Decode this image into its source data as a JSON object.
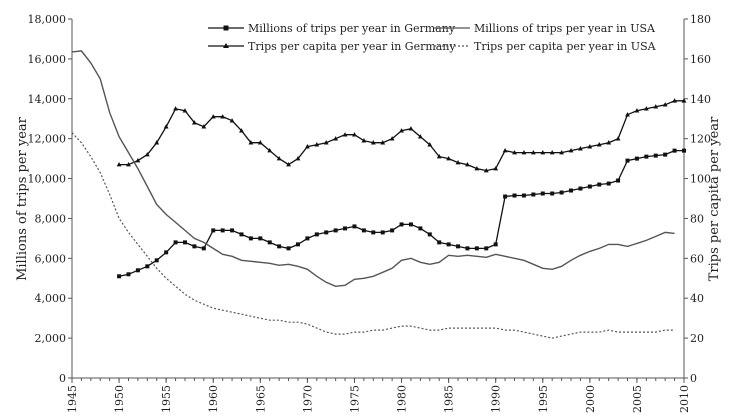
{
  "chart_data": {
    "type": "line",
    "ylabel_left": "Millions of  trips per year",
    "ylabel_right": "Trips per capita per year",
    "xlim": [
      1945,
      2010
    ],
    "ylim_left": [
      0,
      18000
    ],
    "ylim_right": [
      0,
      180
    ],
    "x_ticks": [
      "1945",
      "1950",
      "1955",
      "1960",
      "1965",
      "1970",
      "1975",
      "1980",
      "1985",
      "1990",
      "1995",
      "2000",
      "2005",
      "2010"
    ],
    "y_ticks_left": [
      "0",
      "2,000",
      "4,000",
      "6,000",
      "8,000",
      "10,000",
      "12,000",
      "14,000",
      "16,000",
      "18,000"
    ],
    "y_ticks_right": [
      "0",
      "20",
      "40",
      "60",
      "80",
      "100",
      "120",
      "140",
      "160",
      "180"
    ],
    "legend_position": "top",
    "series": [
      {
        "name": "Millions of trips per year in Germany",
        "axis": "left",
        "style": "solid-square",
        "x": [
          1950,
          1951,
          1952,
          1953,
          1954,
          1955,
          1956,
          1957,
          1958,
          1959,
          1960,
          1961,
          1962,
          1963,
          1964,
          1965,
          1966,
          1967,
          1968,
          1969,
          1970,
          1971,
          1972,
          1973,
          1974,
          1975,
          1976,
          1977,
          1978,
          1979,
          1980,
          1981,
          1982,
          1983,
          1984,
          1985,
          1986,
          1987,
          1988,
          1989,
          1990,
          1991,
          1992,
          1993,
          1994,
          1995,
          1996,
          1997,
          1998,
          1999,
          2000,
          2001,
          2002,
          2003,
          2004,
          2005,
          2006,
          2007,
          2008,
          2009,
          2010
        ],
        "values": [
          5100,
          5200,
          5400,
          5600,
          5900,
          6300,
          6800,
          6800,
          6600,
          6500,
          7400,
          7400,
          7400,
          7200,
          7000,
          7000,
          6800,
          6600,
          6500,
          6700,
          7000,
          7200,
          7300,
          7400,
          7500,
          7600,
          7400,
          7300,
          7300,
          7400,
          7700,
          7700,
          7500,
          7200,
          6800,
          6700,
          6600,
          6500,
          6500,
          6500,
          6700,
          9100,
          9150,
          9150,
          9200,
          9250,
          9250,
          9300,
          9400,
          9500,
          9600,
          9700,
          9750,
          9900,
          10900,
          11000,
          11100,
          11150,
          11200,
          11400,
          11400
        ]
      },
      {
        "name": "Trips per capita per year in Germany",
        "axis": "right",
        "style": "solid-triangle",
        "x": [
          1950,
          1951,
          1952,
          1953,
          1954,
          1955,
          1956,
          1957,
          1958,
          1959,
          1960,
          1961,
          1962,
          1963,
          1964,
          1965,
          1966,
          1967,
          1968,
          1969,
          1970,
          1971,
          1972,
          1973,
          1974,
          1975,
          1976,
          1977,
          1978,
          1979,
          1980,
          1981,
          1982,
          1983,
          1984,
          1985,
          1986,
          1987,
          1988,
          1989,
          1990,
          1991,
          1992,
          1993,
          1994,
          1995,
          1996,
          1997,
          1998,
          1999,
          2000,
          2001,
          2002,
          2003,
          2004,
          2005,
          2006,
          2007,
          2008,
          2009,
          2010
        ],
        "values": [
          107,
          107,
          109,
          112,
          118,
          126,
          135,
          134,
          128,
          126,
          131,
          131,
          129,
          124,
          118,
          118,
          114,
          110,
          107,
          110,
          116,
          117,
          118,
          120,
          122,
          122,
          119,
          118,
          118,
          120,
          124,
          125,
          121,
          117,
          111,
          110,
          108,
          107,
          105,
          104,
          105,
          114,
          113,
          113,
          113,
          113,
          113,
          113,
          114,
          115,
          116,
          117,
          118,
          120,
          132,
          134,
          135,
          136,
          137,
          139,
          139
        ]
      },
      {
        "name": "Millions of trips per year in USA",
        "axis": "left",
        "style": "solid",
        "x": [
          1945,
          1946,
          1947,
          1948,
          1949,
          1950,
          1951,
          1952,
          1953,
          1954,
          1955,
          1956,
          1957,
          1958,
          1959,
          1960,
          1961,
          1962,
          1963,
          1964,
          1965,
          1966,
          1967,
          1968,
          1969,
          1970,
          1971,
          1972,
          1973,
          1974,
          1975,
          1976,
          1977,
          1978,
          1979,
          1980,
          1981,
          1982,
          1983,
          1984,
          1985,
          1986,
          1987,
          1988,
          1989,
          1990,
          1991,
          1992,
          1993,
          1994,
          1995,
          1996,
          1997,
          1998,
          1999,
          2000,
          2001,
          2002,
          2003,
          2004,
          2005,
          2006,
          2007,
          2008,
          2009
        ],
        "values": [
          16350,
          16400,
          15800,
          15000,
          13300,
          12100,
          11300,
          10500,
          9600,
          8700,
          8200,
          7800,
          7400,
          7000,
          6800,
          6500,
          6200,
          6100,
          5900,
          5850,
          5800,
          5750,
          5650,
          5700,
          5600,
          5450,
          5100,
          4800,
          4600,
          4650,
          4950,
          5000,
          5100,
          5300,
          5500,
          5900,
          6000,
          5800,
          5700,
          5800,
          6150,
          6100,
          6150,
          6100,
          6050,
          6200,
          6100,
          6000,
          5900,
          5700,
          5500,
          5450,
          5600,
          5900,
          6150,
          6350,
          6500,
          6700,
          6700,
          6600,
          6750,
          6900,
          7100,
          7300,
          7250
        ]
      },
      {
        "name": "Trips per capita per year in USA",
        "axis": "right",
        "style": "dotted",
        "x": [
          1945,
          1946,
          1947,
          1948,
          1949,
          1950,
          1951,
          1952,
          1953,
          1954,
          1955,
          1956,
          1957,
          1958,
          1959,
          1960,
          1961,
          1962,
          1963,
          1964,
          1965,
          1966,
          1967,
          1968,
          1969,
          1970,
          1971,
          1972,
          1973,
          1974,
          1975,
          1976,
          1977,
          1978,
          1979,
          1980,
          1981,
          1982,
          1983,
          1984,
          1985,
          1986,
          1987,
          1988,
          1989,
          1990,
          1991,
          1992,
          1993,
          1994,
          1995,
          1996,
          1997,
          1998,
          1999,
          2000,
          2001,
          2002,
          2003,
          2004,
          2005,
          2006,
          2007,
          2008,
          2009
        ],
        "values": [
          123,
          118,
          111,
          103,
          92,
          80,
          73,
          67,
          61,
          55,
          50,
          46,
          42,
          39,
          37,
          35,
          34,
          33,
          32,
          31,
          30,
          29,
          29,
          28,
          28,
          27,
          25,
          23,
          22,
          22,
          23,
          23,
          24,
          24,
          25,
          26,
          26,
          25,
          24,
          24,
          25,
          25,
          25,
          25,
          25,
          25,
          24,
          24,
          23,
          22,
          21,
          20,
          21,
          22,
          23,
          23,
          23,
          24,
          23,
          23,
          23,
          23,
          23,
          24,
          24
        ]
      }
    ]
  }
}
